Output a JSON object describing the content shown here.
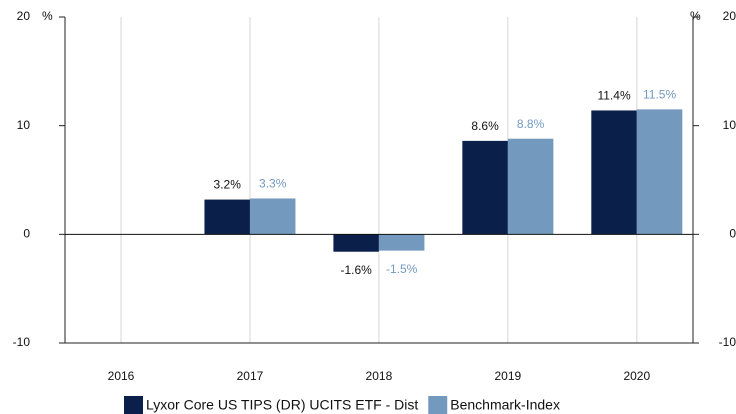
{
  "chart_data": {
    "type": "bar",
    "categories": [
      "2016",
      "2017",
      "2018",
      "2019",
      "2020"
    ],
    "series": [
      {
        "name": "Lyxor Core US TIPS (DR) UCITS ETF - Dist",
        "color": "#0b1f4b",
        "values": [
          null,
          3.2,
          -1.6,
          8.6,
          11.4
        ],
        "value_labels": [
          null,
          "3.2%",
          "-1.6%",
          "8.6%",
          "11.4%"
        ]
      },
      {
        "name": "Benchmark-Index",
        "color": "#7399bf",
        "values": [
          null,
          3.3,
          -1.5,
          8.8,
          11.5
        ],
        "value_labels": [
          null,
          "3.3%",
          "-1.5%",
          "8.8%",
          "11.5%"
        ]
      }
    ],
    "ylim": [
      -10,
      20
    ],
    "yticks": [
      -10,
      0,
      10,
      20
    ],
    "y_unit": "%",
    "y2lim": [
      -10,
      20
    ],
    "y2ticks": [
      -10,
      0,
      10,
      20
    ],
    "y2_unit": "%",
    "grid": true,
    "legend": "bottom"
  }
}
